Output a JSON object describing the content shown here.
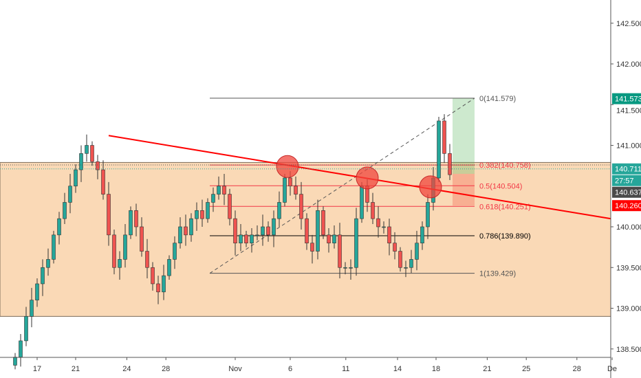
{
  "chart_data": {
    "type": "candlestick",
    "title": "",
    "ylim": [
      138.35,
      143.0
    ],
    "y_ticks": [
      "142.500",
      "142.000",
      "141.500",
      "141.000",
      "140.000",
      "139.500",
      "139.000",
      "138.500"
    ],
    "y_tick_values": [
      142.5,
      142.0,
      141.5,
      141.0,
      140.0,
      139.5,
      139.0,
      138.5
    ],
    "x_ticks": [
      {
        "label": "17",
        "i": 4
      },
      {
        "label": "21",
        "i": 11
      },
      {
        "label": "24",
        "i": 20.3
      },
      {
        "label": "28",
        "i": 27.4
      },
      {
        "label": "Nov",
        "i": 40
      },
      {
        "label": "6",
        "i": 50
      },
      {
        "label": "11",
        "i": 60.1
      },
      {
        "label": "14",
        "i": 69.5
      },
      {
        "label": "18",
        "i": 76.5
      },
      {
        "label": "21",
        "i": 85.8
      },
      {
        "label": "25",
        "i": 92.9
      },
      {
        "label": "28",
        "i": 102.1
      },
      {
        "label": "De",
        "i": 108.5
      }
    ],
    "closes": [
      138.4,
      138.6,
      138.9,
      139.1,
      139.3,
      139.5,
      139.6,
      139.9,
      140.1,
      140.3,
      140.5,
      140.7,
      140.9,
      141.0,
      140.8,
      140.7,
      140.4,
      139.9,
      139.5,
      139.6,
      139.9,
      140.2,
      140.0,
      139.7,
      139.5,
      139.3,
      139.2,
      139.4,
      139.6,
      139.8,
      140.0,
      139.9,
      140.1,
      140.2,
      140.1,
      140.3,
      140.4,
      140.5,
      140.4,
      140.1,
      139.8,
      139.9,
      139.8,
      139.9,
      139.9,
      140.0,
      139.9,
      140.1,
      140.3,
      140.6,
      140.5,
      140.4,
      140.1,
      139.8,
      139.7,
      140.2,
      139.9,
      139.8,
      139.9,
      139.5,
      139.5,
      139.5,
      140.1,
      140.5,
      140.3,
      140.1,
      140.0,
      140.0,
      139.8,
      139.7,
      139.5,
      139.5,
      139.6,
      139.8,
      140.0,
      140.3,
      140.6,
      141.3,
      140.9,
      140.64
    ],
    "support_zone": [
      138.9,
      140.79
    ],
    "trendline": {
      "from": {
        "i": 17,
        "price": 141.12
      },
      "to": {
        "i": 108.2,
        "price": 140.1
      }
    },
    "fib_levels": [
      {
        "label": "0(141.579)",
        "ratio": 0,
        "price": 141.579,
        "color": "#555555"
      },
      {
        "label": "0.382(140.758)",
        "ratio": 0.382,
        "price": 140.758,
        "color": "#f23645"
      },
      {
        "label": "0.5(140.504)",
        "ratio": 0.5,
        "price": 140.504,
        "color": "#f23645"
      },
      {
        "label": "0.618(140.251)",
        "ratio": 0.618,
        "price": 140.251,
        "color": "#f23645"
      },
      {
        "label": "0.786(139.890)",
        "ratio": 0.786,
        "price": 139.89,
        "color": "#000000"
      },
      {
        "label": "1(139.429)",
        "ratio": 1,
        "price": 139.429,
        "color": "#555555"
      }
    ],
    "highlight_circles": [
      {
        "i": 49.5,
        "price": 140.74
      },
      {
        "i": 64,
        "price": 140.6
      },
      {
        "i": 75.5,
        "price": 140.49
      }
    ],
    "long_position": {
      "target": 141.579,
      "entry": 140.65,
      "stop": 140.26
    },
    "price_labels": [
      {
        "text": "141.573",
        "price": 141.573,
        "bg": "#089981"
      },
      {
        "text": "140.711",
        "price": 140.711,
        "bg": "#26a69a"
      },
      {
        "text": "27:57",
        "price": 140.58,
        "bg": "#26a69a"
      },
      {
        "text": "140.637",
        "price": 140.637,
        "bg": "#4a4a4a"
      },
      {
        "text": "140.260",
        "price": 140.26,
        "bg": "#ff0000"
      }
    ],
    "colors": {
      "up": "#26a69a",
      "down": "#ef5350",
      "zone": "#fad9b6",
      "trend": "#ff0000"
    }
  }
}
